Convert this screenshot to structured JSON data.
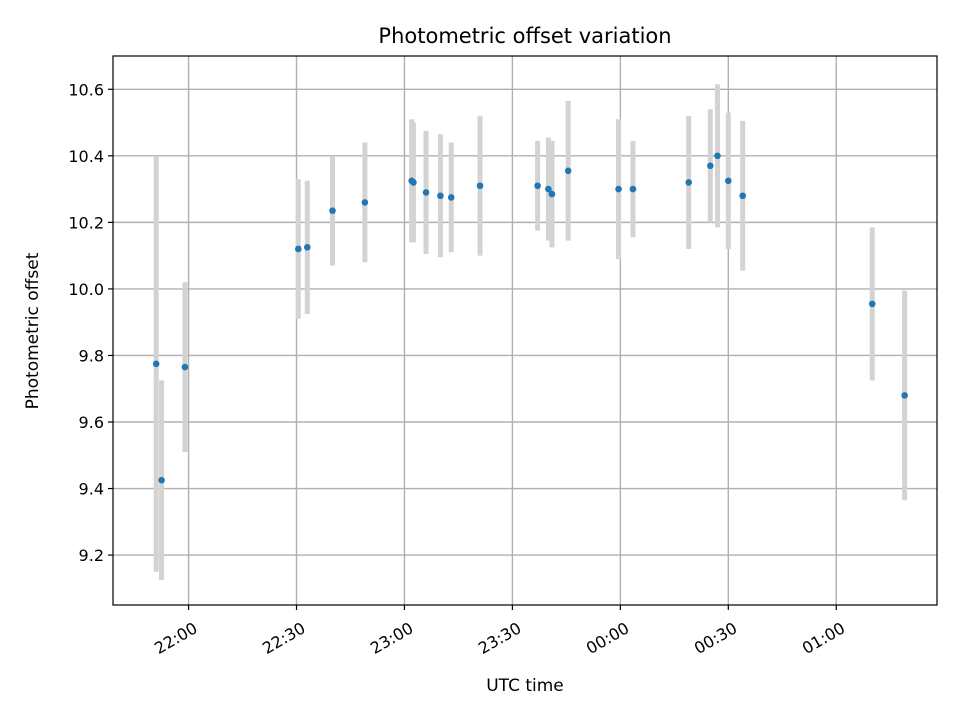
{
  "chart_data": {
    "type": "scatter",
    "title": "Photometric offset variation",
    "xlabel": "UTC time",
    "ylabel": "Photometric offset",
    "grid": true,
    "x_axis": {
      "kind": "time",
      "min": "21:39",
      "max": "01:28",
      "ticks": [
        "22:00",
        "22:30",
        "23:00",
        "23:30",
        "00:00",
        "00:30",
        "01:00"
      ],
      "tick_rotation": 30
    },
    "y_axis": {
      "min": 9.05,
      "max": 10.7,
      "ticks": [
        9.2,
        9.4,
        9.6,
        9.8,
        10.0,
        10.2,
        10.4,
        10.6
      ]
    },
    "marker_color": "#1f77b4",
    "errorbar_color": "#d3d3d3",
    "series": [
      {
        "points": [
          {
            "x": "21:51",
            "y": 9.775,
            "yerr": 0.625
          },
          {
            "x": "21:52.5",
            "y": 9.425,
            "yerr": 0.3
          },
          {
            "x": "21:59",
            "y": 9.765,
            "yerr": 0.255
          },
          {
            "x": "22:30.5",
            "y": 10.12,
            "yerr": 0.21
          },
          {
            "x": "22:33",
            "y": 10.125,
            "yerr": 0.2
          },
          {
            "x": "22:40",
            "y": 10.235,
            "yerr": 0.165
          },
          {
            "x": "22:49",
            "y": 10.26,
            "yerr": 0.18
          },
          {
            "x": "23:02",
            "y": 10.325,
            "yerr": 0.185
          },
          {
            "x": "23:02.5",
            "y": 10.32,
            "yerr": 0.18
          },
          {
            "x": "23:06",
            "y": 10.29,
            "yerr": 0.185
          },
          {
            "x": "23:10",
            "y": 10.28,
            "yerr": 0.185
          },
          {
            "x": "23:13",
            "y": 10.275,
            "yerr": 0.165
          },
          {
            "x": "23:21",
            "y": 10.31,
            "yerr": 0.21
          },
          {
            "x": "23:37",
            "y": 10.31,
            "yerr": 0.135
          },
          {
            "x": "23:40",
            "y": 10.3,
            "yerr": 0.155
          },
          {
            "x": "23:41",
            "y": 10.285,
            "yerr": 0.16
          },
          {
            "x": "23:45.5",
            "y": 10.355,
            "yerr": 0.21
          },
          {
            "x": "23:59.5",
            "y": 10.3,
            "yerr": 0.21
          },
          {
            "x": "00:03.5",
            "y": 10.3,
            "yerr": 0.145
          },
          {
            "x": "00:19",
            "y": 10.32,
            "yerr": 0.2
          },
          {
            "x": "00:25",
            "y": 10.37,
            "yerr": 0.17
          },
          {
            "x": "00:27",
            "y": 10.4,
            "yerr": 0.215
          },
          {
            "x": "00:30",
            "y": 10.325,
            "yerr": 0.205
          },
          {
            "x": "00:34",
            "y": 10.28,
            "yerr": 0.225
          },
          {
            "x": "01:10",
            "y": 9.955,
            "yerr": 0.23
          },
          {
            "x": "01:19",
            "y": 9.68,
            "yerr": 0.315
          }
        ]
      }
    ]
  }
}
